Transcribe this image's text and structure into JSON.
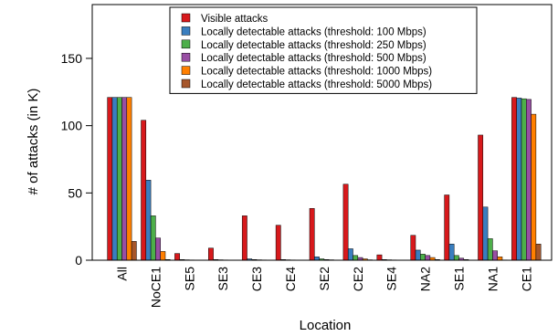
{
  "chart_data": {
    "type": "bar",
    "xlabel": "Location",
    "ylabel": "# of attacks (in K)",
    "ylim": [
      0,
      190
    ],
    "yticks": [
      0,
      50,
      100,
      150
    ],
    "grid": false,
    "legend_position": "top-center",
    "categories": [
      "All",
      "NoCE1",
      "SE5",
      "SE3",
      "CE3",
      "CE4",
      "SE2",
      "CE2",
      "SE4",
      "NA2",
      "SE1",
      "NA1",
      "CE1"
    ],
    "series": [
      {
        "name": "Visible attacks",
        "color": "#d7191c",
        "values": [
          121,
          104,
          5,
          9,
          33,
          26,
          38.5,
          56.5,
          4,
          18.5,
          48.5,
          93,
          121
        ]
      },
      {
        "name": "Locally detectable attacks (threshold:  100 Mbps)",
        "color": "#3a7ebf",
        "values": [
          121,
          59.5,
          0.5,
          0.5,
          1,
          0.5,
          2.5,
          8.5,
          0.5,
          7.5,
          12,
          39.5,
          120.5
        ]
      },
      {
        "name": "Locally detectable attacks (threshold:  250 Mbps)",
        "color": "#4daf4a",
        "values": [
          121,
          33,
          0.3,
          0.3,
          0.5,
          0.3,
          1,
          3.5,
          0.3,
          4.5,
          3.5,
          16,
          120
        ]
      },
      {
        "name": "Locally detectable attacks (threshold:  500 Mbps)",
        "color": "#984ea3",
        "values": [
          121,
          16.5,
          0.2,
          0.2,
          0.3,
          0.2,
          0.5,
          2,
          0.2,
          3.5,
          1.5,
          7,
          119.5
        ]
      },
      {
        "name": "Locally detectable attacks (threshold:  1000 Mbps)",
        "color": "#ff7f00",
        "values": [
          121,
          6.5,
          0.1,
          0.1,
          0.2,
          0.1,
          0.3,
          1,
          0.1,
          2,
          0.5,
          2.5,
          108.5
        ]
      },
      {
        "name": "Locally detectable attacks (threshold:  5000 Mbps)",
        "color": "#a6562a",
        "values": [
          14,
          0.5,
          0.1,
          0.1,
          0.1,
          0.1,
          0.1,
          0.3,
          0.1,
          0.5,
          0.1,
          0.2,
          12
        ]
      }
    ]
  }
}
